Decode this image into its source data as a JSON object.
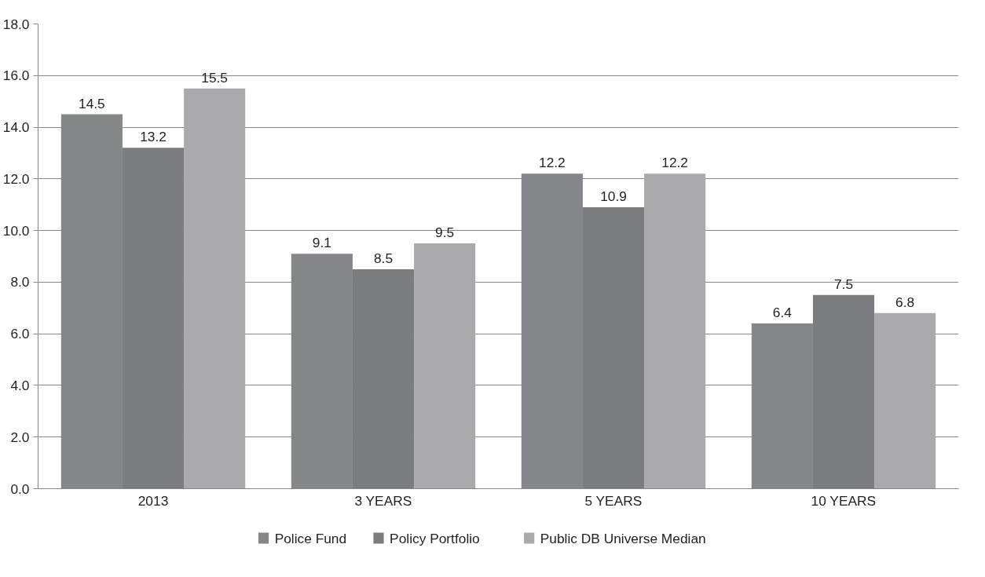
{
  "chart_data": {
    "type": "bar",
    "categories": [
      "2013",
      "3 YEARS",
      "5 YEARS",
      "10 YEARS"
    ],
    "series": [
      {
        "name": "Police Fund",
        "color": "#85868a",
        "values": [
          14.5,
          9.1,
          12.2,
          6.4
        ]
      },
      {
        "name": "Policy Portfolio",
        "color": "#7b7c80",
        "values": [
          13.2,
          8.5,
          10.9,
          7.5
        ]
      },
      {
        "name": "Public DB Universe Median",
        "color": "#aaaaad",
        "values": [
          15.5,
          9.5,
          12.2,
          6.8
        ]
      }
    ],
    "ylim": [
      0,
      18
    ],
    "yticks": [
      {
        "value": 0,
        "label": "0.0"
      },
      {
        "value": 2,
        "label": "2.0"
      },
      {
        "value": 4,
        "label": "4.0"
      },
      {
        "value": 6,
        "label": "6.0"
      },
      {
        "value": 8,
        "label": "8.0"
      },
      {
        "value": 10,
        "label": "10.0"
      },
      {
        "value": 12,
        "label": "12.0"
      },
      {
        "value": 14,
        "label": "14.0"
      },
      {
        "value": 16,
        "label": "16.0"
      },
      {
        "value": 18,
        "label": "18.0"
      }
    ],
    "grid": "y",
    "legend": "bottom",
    "data_labels": true
  }
}
